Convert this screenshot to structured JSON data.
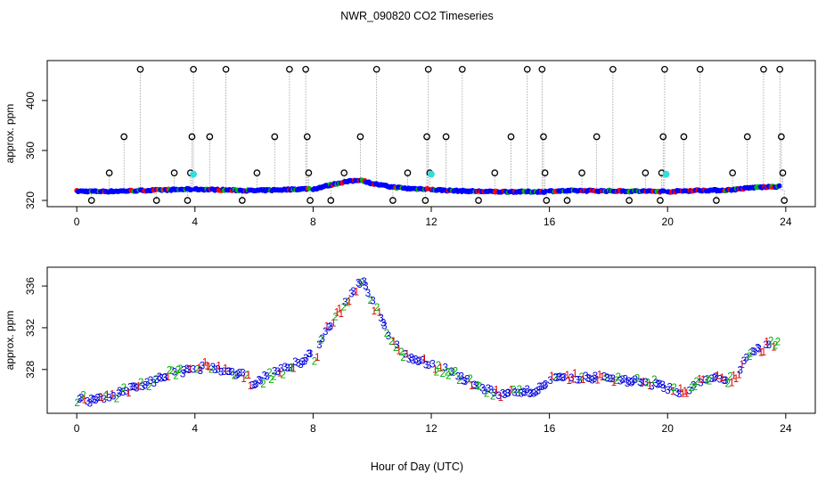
{
  "figure": {
    "title": "NWR_090820  CO2 Timeseries",
    "xlabel": "Hour of Day (UTC)"
  },
  "chart_data": [
    {
      "type": "scatter",
      "panel": "top",
      "ylabel": "approx. ppm",
      "xlim": [
        -1,
        25
      ],
      "ylim": [
        315,
        432
      ],
      "xticks": [
        0,
        4,
        8,
        12,
        16,
        20,
        24
      ],
      "yticks": [
        320,
        360,
        400
      ],
      "grid": false,
      "colors": {
        "a": "#ff0000",
        "b": "#00bb00",
        "c": "#0000ff",
        "calibration": "#33dddd",
        "outlier": "#000000",
        "dropline": "#999999"
      },
      "series": [
        {
          "name": "baseline",
          "values": "see baseline segments"
        }
      ],
      "baseline_segments": [
        {
          "x": [
            0.0,
            1.0,
            2.0,
            3.0,
            3.9
          ],
          "y": [
            327.4,
            327.2,
            327.8,
            328.4,
            329.0
          ]
        },
        {
          "x": [
            4.0,
            5.0,
            6.0,
            7.0,
            7.9
          ],
          "y": [
            329.0,
            328.4,
            327.8,
            328.6,
            329.4
          ]
        },
        {
          "x": [
            8.0,
            8.6,
            9.0,
            9.6,
            10.0,
            10.6,
            11.2,
            11.9
          ],
          "y": [
            329.0,
            332.5,
            334.5,
            336.5,
            333.5,
            331.0,
            329.5,
            329.2
          ]
        },
        {
          "x": [
            12.0,
            13.0,
            14.0,
            15.0,
            15.9
          ],
          "y": [
            328.6,
            327.6,
            327.0,
            327.0,
            327.0
          ]
        },
        {
          "x": [
            16.0,
            17.0,
            18.0,
            19.0,
            19.9
          ],
          "y": [
            327.4,
            327.8,
            327.6,
            327.4,
            327.2
          ]
        },
        {
          "x": [
            20.0,
            21.0,
            22.0,
            23.0,
            23.8
          ],
          "y": [
            327.0,
            328.0,
            328.2,
            330.5,
            331.0
          ]
        }
      ],
      "outliers": [
        {
          "x": 0.5,
          "y": 320
        },
        {
          "x": 1.1,
          "y": 342
        },
        {
          "x": 1.6,
          "y": 371
        },
        {
          "x": 2.15,
          "y": 425
        },
        {
          "x": 3.3,
          "y": 342
        },
        {
          "x": 2.7,
          "y": 320
        },
        {
          "x": 3.75,
          "y": 320
        },
        {
          "x": 3.85,
          "y": 342
        },
        {
          "x": 3.9,
          "y": 371
        },
        {
          "x": 3.95,
          "y": 425
        },
        {
          "x": 4.5,
          "y": 371
        },
        {
          "x": 5.05,
          "y": 425
        },
        {
          "x": 5.6,
          "y": 320
        },
        {
          "x": 6.1,
          "y": 342
        },
        {
          "x": 6.7,
          "y": 371
        },
        {
          "x": 7.2,
          "y": 425
        },
        {
          "x": 7.75,
          "y": 425
        },
        {
          "x": 7.8,
          "y": 371
        },
        {
          "x": 7.85,
          "y": 342
        },
        {
          "x": 7.9,
          "y": 320
        },
        {
          "x": 8.6,
          "y": 320
        },
        {
          "x": 9.05,
          "y": 342
        },
        {
          "x": 9.6,
          "y": 371
        },
        {
          "x": 10.15,
          "y": 425
        },
        {
          "x": 10.7,
          "y": 320
        },
        {
          "x": 11.2,
          "y": 342
        },
        {
          "x": 11.8,
          "y": 320
        },
        {
          "x": 11.85,
          "y": 371
        },
        {
          "x": 11.9,
          "y": 425
        },
        {
          "x": 11.95,
          "y": 342
        },
        {
          "x": 12.5,
          "y": 371
        },
        {
          "x": 13.05,
          "y": 425
        },
        {
          "x": 13.6,
          "y": 320
        },
        {
          "x": 14.15,
          "y": 342
        },
        {
          "x": 14.7,
          "y": 371
        },
        {
          "x": 15.25,
          "y": 425
        },
        {
          "x": 15.75,
          "y": 425
        },
        {
          "x": 15.8,
          "y": 371
        },
        {
          "x": 15.85,
          "y": 342
        },
        {
          "x": 15.9,
          "y": 320
        },
        {
          "x": 16.6,
          "y": 320
        },
        {
          "x": 17.1,
          "y": 342
        },
        {
          "x": 17.6,
          "y": 371
        },
        {
          "x": 18.15,
          "y": 425
        },
        {
          "x": 18.7,
          "y": 320
        },
        {
          "x": 19.25,
          "y": 342
        },
        {
          "x": 19.75,
          "y": 320
        },
        {
          "x": 19.8,
          "y": 342
        },
        {
          "x": 19.85,
          "y": 371
        },
        {
          "x": 19.9,
          "y": 425
        },
        {
          "x": 20.55,
          "y": 371
        },
        {
          "x": 21.1,
          "y": 425
        },
        {
          "x": 21.65,
          "y": 320
        },
        {
          "x": 22.2,
          "y": 342
        },
        {
          "x": 22.7,
          "y": 371
        },
        {
          "x": 23.25,
          "y": 425
        },
        {
          "x": 23.8,
          "y": 425
        },
        {
          "x": 23.85,
          "y": 371
        },
        {
          "x": 23.9,
          "y": 342
        },
        {
          "x": 23.95,
          "y": 320
        }
      ],
      "calibration_points": [
        {
          "x": 3.95,
          "y": 341
        },
        {
          "x": 12.0,
          "y": 341
        },
        {
          "x": 19.95,
          "y": 341
        }
      ]
    },
    {
      "type": "scatter",
      "panel": "bottom",
      "ylabel": "approx. ppm",
      "xlim": [
        -1,
        25
      ],
      "ylim": [
        323.8,
        337.8
      ],
      "xticks": [
        0,
        4,
        8,
        12,
        16,
        20,
        24
      ],
      "yticks": [
        328,
        332,
        336
      ],
      "grid": false,
      "marker_labels": [
        "1",
        "2",
        "3"
      ],
      "marker_colors": [
        "#dd0000",
        "#00aa00",
        "#0000dd"
      ],
      "curve_x": [
        0,
        0.4,
        1.0,
        1.5,
        2.0,
        2.5,
        3.0,
        3.5,
        3.9,
        4.0,
        4.3,
        4.7,
        5.2,
        5.7,
        6.0,
        6.5,
        7.0,
        7.5,
        7.9,
        8.0,
        8.3,
        8.6,
        9.0,
        9.3,
        9.55,
        9.7,
        9.9,
        10.2,
        10.6,
        11.0,
        11.5,
        12.0,
        12.5,
        13.0,
        13.5,
        14.0,
        14.5,
        15.0,
        15.5,
        15.9,
        16.0,
        17.0,
        18.0,
        19.0,
        19.9,
        20.0,
        20.5,
        21.0,
        21.5,
        22.0,
        22.4,
        22.6,
        23.0,
        23.5,
        23.8
      ],
      "curve_y": [
        325.3,
        325.0,
        325.4,
        325.8,
        326.3,
        326.8,
        327.3,
        327.8,
        328.0,
        327.6,
        328.4,
        328.0,
        327.6,
        327.4,
        326.6,
        327.4,
        328.0,
        328.6,
        329.4,
        328.8,
        331.0,
        332.2,
        334.0,
        335.2,
        336.2,
        336.8,
        335.2,
        333.2,
        331.2,
        329.5,
        328.8,
        328.4,
        328.0,
        327.2,
        326.4,
        325.9,
        325.5,
        325.7,
        326.0,
        326.4,
        327.0,
        327.2,
        327.2,
        326.8,
        326.4,
        326.2,
        325.8,
        326.6,
        327.2,
        326.8,
        327.4,
        329.0,
        329.8,
        330.4,
        331.0
      ]
    }
  ]
}
